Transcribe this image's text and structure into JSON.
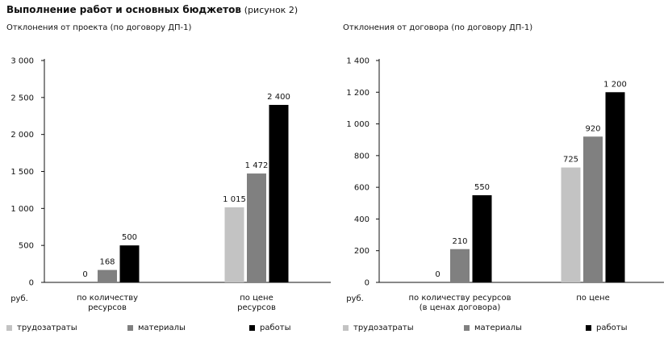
{
  "header": {
    "title": "Выполнение работ и основных бюджетов",
    "subtitle": "(рисунок 2)"
  },
  "colors": {
    "labor": "#c3c3c3",
    "materials": "#808080",
    "works": "#000000"
  },
  "legend": [
    "трудозатраты",
    "материалы",
    "работы"
  ],
  "chart_data": [
    {
      "type": "bar",
      "title": "Отклонения от проекта (по договору ДП-1)",
      "ylabel": "руб.",
      "ylim": [
        0,
        3000
      ],
      "yticks": [
        0,
        500,
        1000,
        1500,
        2000,
        2500,
        3000
      ],
      "ytick_labels": [
        "0",
        "500",
        "1 000",
        "1 500",
        "2 000",
        "2 500",
        "3 000"
      ],
      "categories": [
        [
          "по количеству",
          "ресурсов"
        ],
        [
          "по цене",
          "ресурсов"
        ]
      ],
      "series": [
        {
          "name": "трудозатраты",
          "values": [
            0,
            1015
          ],
          "labels": [
            "0",
            "1 015"
          ]
        },
        {
          "name": "материалы",
          "values": [
            168,
            1472
          ],
          "labels": [
            "168",
            "1 472"
          ]
        },
        {
          "name": "работы",
          "values": [
            500,
            2400
          ],
          "labels": [
            "500",
            "2 400"
          ]
        }
      ],
      "grid": false,
      "legend_position": "bottom"
    },
    {
      "type": "bar",
      "title": "Отклонения от договора (по договору ДП-1)",
      "ylabel": "руб.",
      "ylim": [
        0,
        1400
      ],
      "yticks": [
        0,
        200,
        400,
        600,
        800,
        1000,
        1200,
        1400
      ],
      "ytick_labels": [
        "0",
        "200",
        "400",
        "600",
        "800",
        "1 000",
        "1 200",
        "1 400"
      ],
      "categories": [
        [
          "по количеству ресурсов",
          "(в ценах договора)"
        ],
        [
          "по цене"
        ]
      ],
      "series": [
        {
          "name": "трудозатраты",
          "values": [
            0,
            725
          ],
          "labels": [
            "0",
            "725"
          ]
        },
        {
          "name": "материалы",
          "values": [
            210,
            920
          ],
          "labels": [
            "210",
            "920"
          ]
        },
        {
          "name": "работы",
          "values": [
            550,
            1200
          ],
          "labels": [
            "550",
            "1 200"
          ]
        }
      ],
      "grid": false,
      "legend_position": "bottom"
    }
  ]
}
